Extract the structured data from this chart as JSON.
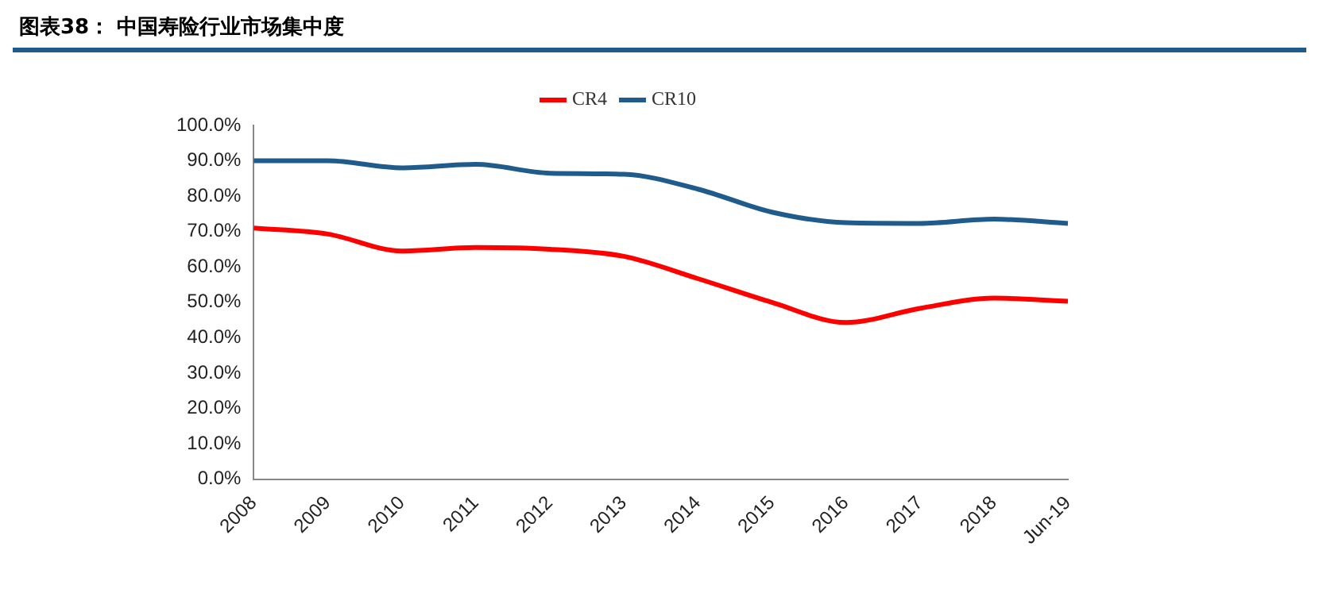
{
  "chart_data": {
    "type": "line",
    "title": "图表38：  中国寿险行业市场集中度",
    "categories": [
      "2008",
      "2009",
      "2010",
      "2011",
      "2012",
      "2013",
      "2014",
      "2015",
      "2016",
      "2017",
      "2018",
      "Jun-19"
    ],
    "series": [
      {
        "name": "CR4",
        "color": "#ff0000",
        "values": [
          71.0,
          69.3,
          64.5,
          65.5,
          65.0,
          63.0,
          56.7,
          50.0,
          44.3,
          48.3,
          51.2,
          50.3
        ]
      },
      {
        "name": "CR10",
        "color": "#1f5c8b",
        "values": [
          90.0,
          90.0,
          88.0,
          89.0,
          86.5,
          86.2,
          82.0,
          75.5,
          72.5,
          72.3,
          73.5,
          72.3
        ]
      }
    ],
    "ylim": [
      0,
      100
    ],
    "yticks": [
      {
        "value": 0,
        "label": "0.0%"
      },
      {
        "value": 10,
        "label": "10.0%"
      },
      {
        "value": 20,
        "label": "20.0%"
      },
      {
        "value": 30,
        "label": "30.0%"
      },
      {
        "value": 40,
        "label": "40.0%"
      },
      {
        "value": 50,
        "label": "50.0%"
      },
      {
        "value": 60,
        "label": "60.0%"
      },
      {
        "value": 70,
        "label": "70.0%"
      },
      {
        "value": 80,
        "label": "80.0%"
      },
      {
        "value": 90,
        "label": "90.0%"
      },
      {
        "value": 100,
        "label": "100.0%"
      }
    ],
    "grid": false,
    "legend": "top",
    "marker": "none",
    "line_style": "solid"
  }
}
